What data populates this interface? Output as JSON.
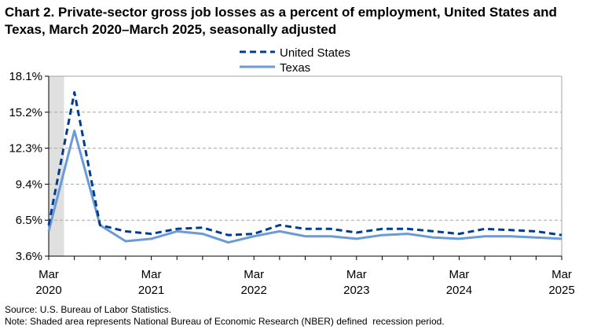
{
  "chart_data": {
    "type": "line",
    "title": "Chart 2. Private-sector gross job losses as a percent of employment, United States and Texas, March 2020–March 2025, seasonally adjusted",
    "xlabel": "",
    "ylabel": "",
    "x": [
      "Mar 2020",
      "Jun 2020",
      "Sep 2020",
      "Dec 2020",
      "Mar 2021",
      "Jun 2021",
      "Sep 2021",
      "Dec 2021",
      "Mar 2022",
      "Jun 2022",
      "Sep 2022",
      "Dec 2022",
      "Mar 2023",
      "Jun 2023",
      "Sep 2023",
      "Dec 2023",
      "Mar 2024",
      "Jun 2024",
      "Sep 2024",
      "Dec 2024",
      "Mar 2025"
    ],
    "x_tick_labels": [
      {
        "month": "Mar",
        "year": "2020"
      },
      {
        "month": "Mar",
        "year": "2021"
      },
      {
        "month": "Mar",
        "year": "2022"
      },
      {
        "month": "Mar",
        "year": "2023"
      },
      {
        "month": "Mar",
        "year": "2024"
      },
      {
        "month": "Mar",
        "year": "2025"
      }
    ],
    "ylim": [
      3.6,
      18.1
    ],
    "y_ticks": [
      3.6,
      6.5,
      9.4,
      12.3,
      15.2,
      18.1
    ],
    "y_tick_labels": [
      "3.6%",
      "6.5%",
      "9.4%",
      "12.3%",
      "15.2%",
      "18.1%"
    ],
    "grid": "horizontal dashed",
    "legend_position": "top-center",
    "recession_shading": {
      "start": "Feb 2020",
      "end": "Apr 2020",
      "color": "#e0e0e0"
    },
    "series": [
      {
        "name": "United States",
        "style": "dashed",
        "color": "#003d8f",
        "values": [
          6.1,
          16.8,
          6.1,
          5.6,
          5.4,
          5.8,
          5.9,
          5.3,
          5.4,
          6.1,
          5.8,
          5.8,
          5.5,
          5.8,
          5.8,
          5.6,
          5.4,
          5.8,
          5.7,
          5.6,
          5.3
        ]
      },
      {
        "name": "Texas",
        "style": "solid",
        "color": "#6a9ad8",
        "values": [
          5.6,
          13.7,
          6.1,
          4.8,
          5.0,
          5.6,
          5.4,
          4.7,
          5.2,
          5.6,
          5.2,
          5.2,
          5.0,
          5.3,
          5.4,
          5.1,
          5.0,
          5.2,
          5.2,
          5.1,
          5.0
        ]
      }
    ]
  },
  "source": "Source: U.S. Bureau of Labor Statistics.",
  "note": "Note: Shaded area represents National Bureau of Economic Research (NBER) defined  recession period."
}
